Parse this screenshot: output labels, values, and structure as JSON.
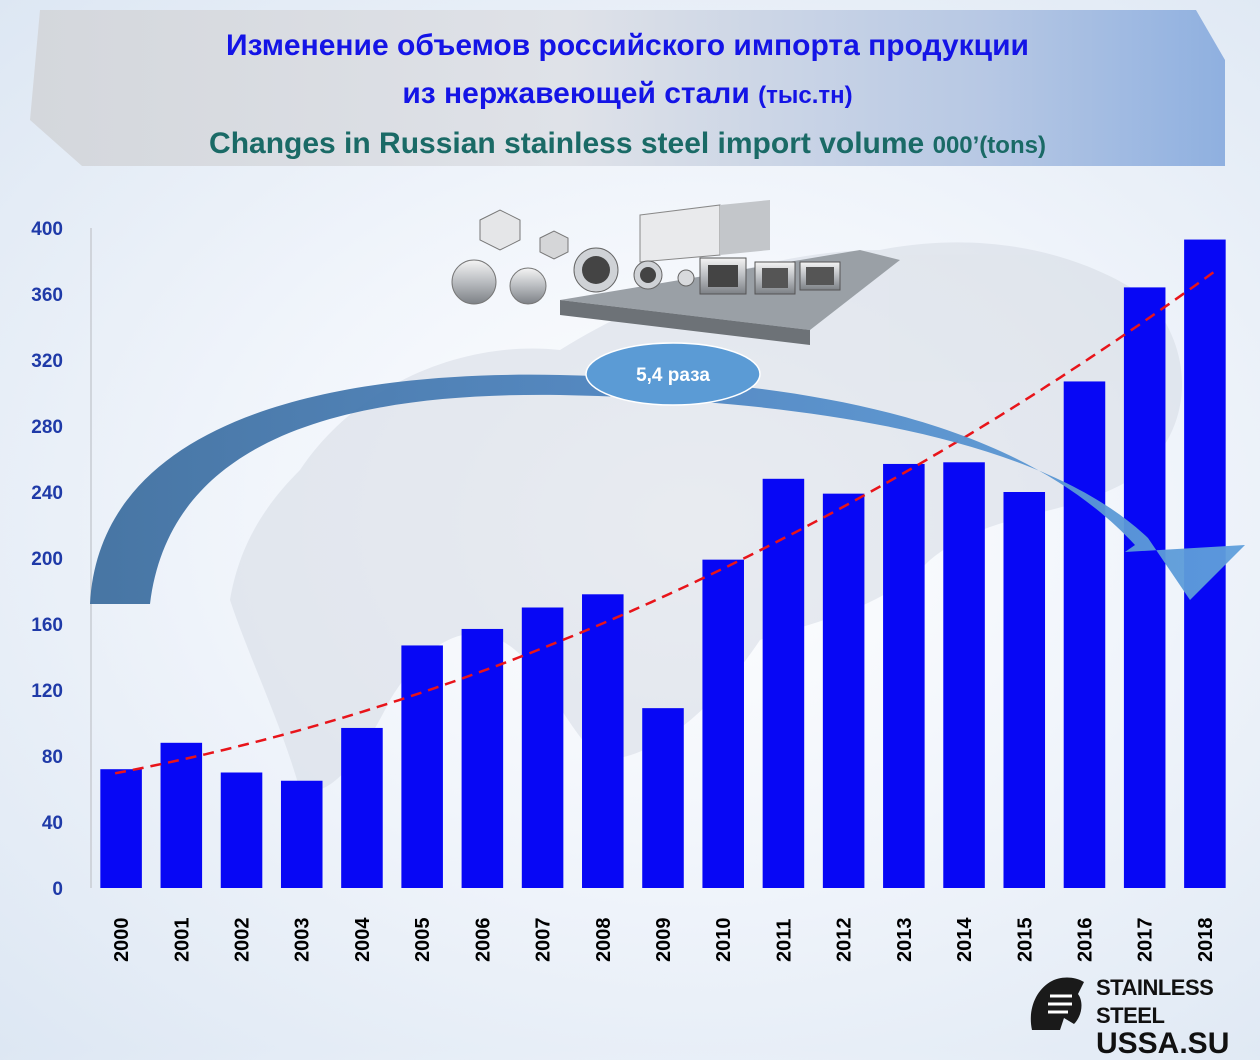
{
  "title": {
    "ru_line1": "Изменение объемов российского импорта продукции",
    "ru_line2": "из нержавеющей стали",
    "ru_unit": "(тыс.тн)",
    "en": "Changes in Russian stainless steel import  volume",
    "en_unit": "000’(tons)"
  },
  "annotation": {
    "label": "5,4 раза"
  },
  "logo": {
    "line1": "STAINLESS STEEL",
    "line2": "USSA.SU"
  },
  "colors": {
    "bar": "#0707f5",
    "axis_text": "#1f3aa8",
    "trend": "#e8141a",
    "arrow": "#4f86c2",
    "callout": "#5b9bd5"
  },
  "chart_data": {
    "type": "bar",
    "categories": [
      "2000",
      "2001",
      "2002",
      "2003",
      "2004",
      "2005",
      "2006",
      "2007",
      "2008",
      "2009",
      "2010",
      "2011",
      "2012",
      "2013",
      "2014",
      "2015",
      "2016",
      "2017",
      "2018"
    ],
    "values": [
      72,
      88,
      70,
      65,
      97,
      147,
      157,
      170,
      178,
      109,
      199,
      248,
      239,
      257,
      258,
      240,
      307,
      364,
      393
    ],
    "ylim": [
      0,
      400
    ],
    "yticks": [
      0,
      40,
      80,
      120,
      160,
      200,
      240,
      280,
      320,
      360,
      400
    ],
    "trendline": "polynomial",
    "grid": false,
    "legend": "none"
  }
}
